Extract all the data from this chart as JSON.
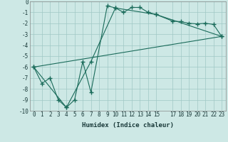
{
  "xlabel": "Humidex (Indice chaleur)",
  "bg_color": "#cde8e5",
  "grid_color": "#a0c8c5",
  "line_color": "#1a6b5a",
  "xlim": [
    -0.5,
    23.5
  ],
  "ylim": [
    -10,
    0
  ],
  "xtick_vals": [
    0,
    1,
    2,
    3,
    4,
    5,
    6,
    7,
    8,
    9,
    10,
    11,
    12,
    13,
    14,
    15,
    17,
    18,
    19,
    20,
    21,
    22,
    23
  ],
  "ytick_vals": [
    0,
    -1,
    -2,
    -3,
    -4,
    -5,
    -6,
    -7,
    -8,
    -9,
    -10
  ],
  "series1_x": [
    0,
    1,
    2,
    3,
    4,
    5,
    6,
    7,
    9,
    10,
    11,
    12,
    13,
    14,
    15,
    17,
    18,
    19,
    20,
    21,
    22,
    23
  ],
  "series1_y": [
    -6.0,
    -7.5,
    -7.0,
    -9.0,
    -9.7,
    -9.0,
    -5.5,
    -8.3,
    -0.4,
    -0.6,
    -1.0,
    -0.55,
    -0.55,
    -1.0,
    -1.2,
    -1.8,
    -1.85,
    -2.0,
    -2.05,
    -2.0,
    -2.1,
    -3.2
  ],
  "series2_x": [
    0,
    4,
    7,
    10,
    15,
    23
  ],
  "series2_y": [
    -6.0,
    -9.7,
    -5.5,
    -0.6,
    -1.2,
    -3.2
  ],
  "series3_x": [
    0,
    23
  ],
  "series3_y": [
    -6.0,
    -3.2
  ],
  "tick_fontsize": 5.5,
  "xlabel_fontsize": 6.5
}
